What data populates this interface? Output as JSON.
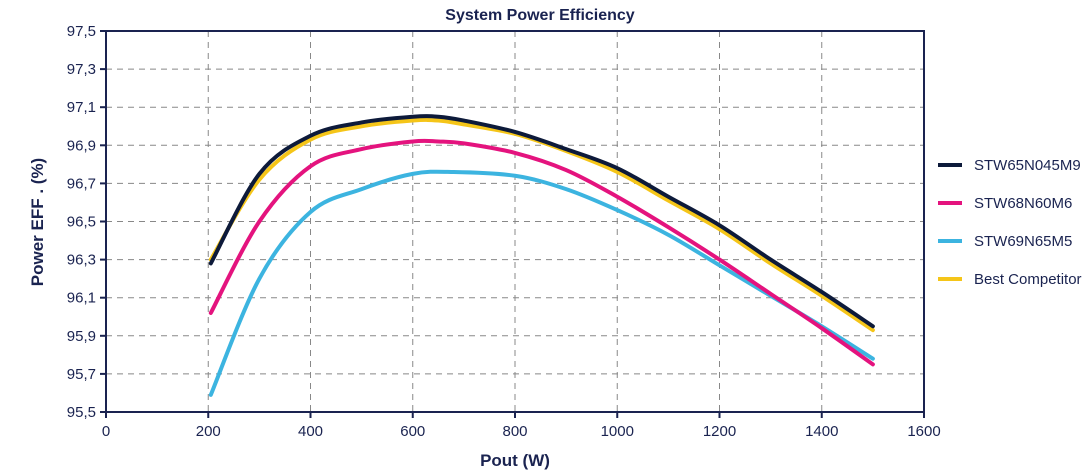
{
  "chart_data": {
    "type": "line",
    "title": "System Power Efficiency",
    "xlabel": "Pout (W)",
    "ylabel": "Power EFF . (%)",
    "xlim": [
      0,
      1600
    ],
    "ylim": [
      95.5,
      97.5
    ],
    "xticks": [
      "0",
      "200",
      "400",
      "600",
      "800",
      "1000",
      "1200",
      "1400",
      "1600"
    ],
    "yticks": [
      "95,5",
      "95,7",
      "95,9",
      "96,1",
      "96,3",
      "96,5",
      "96,7",
      "96,9",
      "97,1",
      "97,3",
      "97,5"
    ],
    "grid": true,
    "legend_position": "right",
    "series": [
      {
        "name": "STW65N045M9",
        "color": "#0d1a3a",
        "x": [
          205,
          300,
          400,
          500,
          600,
          650,
          700,
          800,
          900,
          1000,
          1100,
          1200,
          1300,
          1400,
          1500
        ],
        "y": [
          96.28,
          96.75,
          96.95,
          97.02,
          97.05,
          97.05,
          97.03,
          96.97,
          96.88,
          96.78,
          96.63,
          96.48,
          96.3,
          96.13,
          95.95
        ]
      },
      {
        "name": "STW68N60M6",
        "color": "#e4137e",
        "x": [
          205,
          300,
          400,
          500,
          600,
          650,
          700,
          800,
          900,
          1000,
          1100,
          1200,
          1300,
          1400,
          1500
        ],
        "y": [
          96.02,
          96.5,
          96.79,
          96.88,
          96.92,
          96.92,
          96.91,
          96.86,
          96.77,
          96.63,
          96.47,
          96.3,
          96.12,
          95.94,
          95.75
        ]
      },
      {
        "name": "STW69N65M5",
        "color": "#3cb4e0",
        "x": [
          205,
          300,
          400,
          500,
          600,
          680,
          800,
          900,
          1000,
          1100,
          1200,
          1300,
          1400,
          1500
        ],
        "y": [
          95.59,
          96.2,
          96.55,
          96.67,
          96.75,
          96.76,
          96.74,
          96.67,
          96.56,
          96.43,
          96.27,
          96.11,
          95.95,
          95.78
        ]
      },
      {
        "name": "Best Competitor",
        "color": "#f5c518",
        "x": [
          205,
          300,
          400,
          500,
          600,
          650,
          700,
          800,
          900,
          1000,
          1100,
          1200,
          1300,
          1400,
          1500
        ],
        "y": [
          96.3,
          96.72,
          96.93,
          97.0,
          97.03,
          97.03,
          97.01,
          96.96,
          96.87,
          96.76,
          96.61,
          96.46,
          96.28,
          96.11,
          95.93
        ]
      }
    ]
  }
}
